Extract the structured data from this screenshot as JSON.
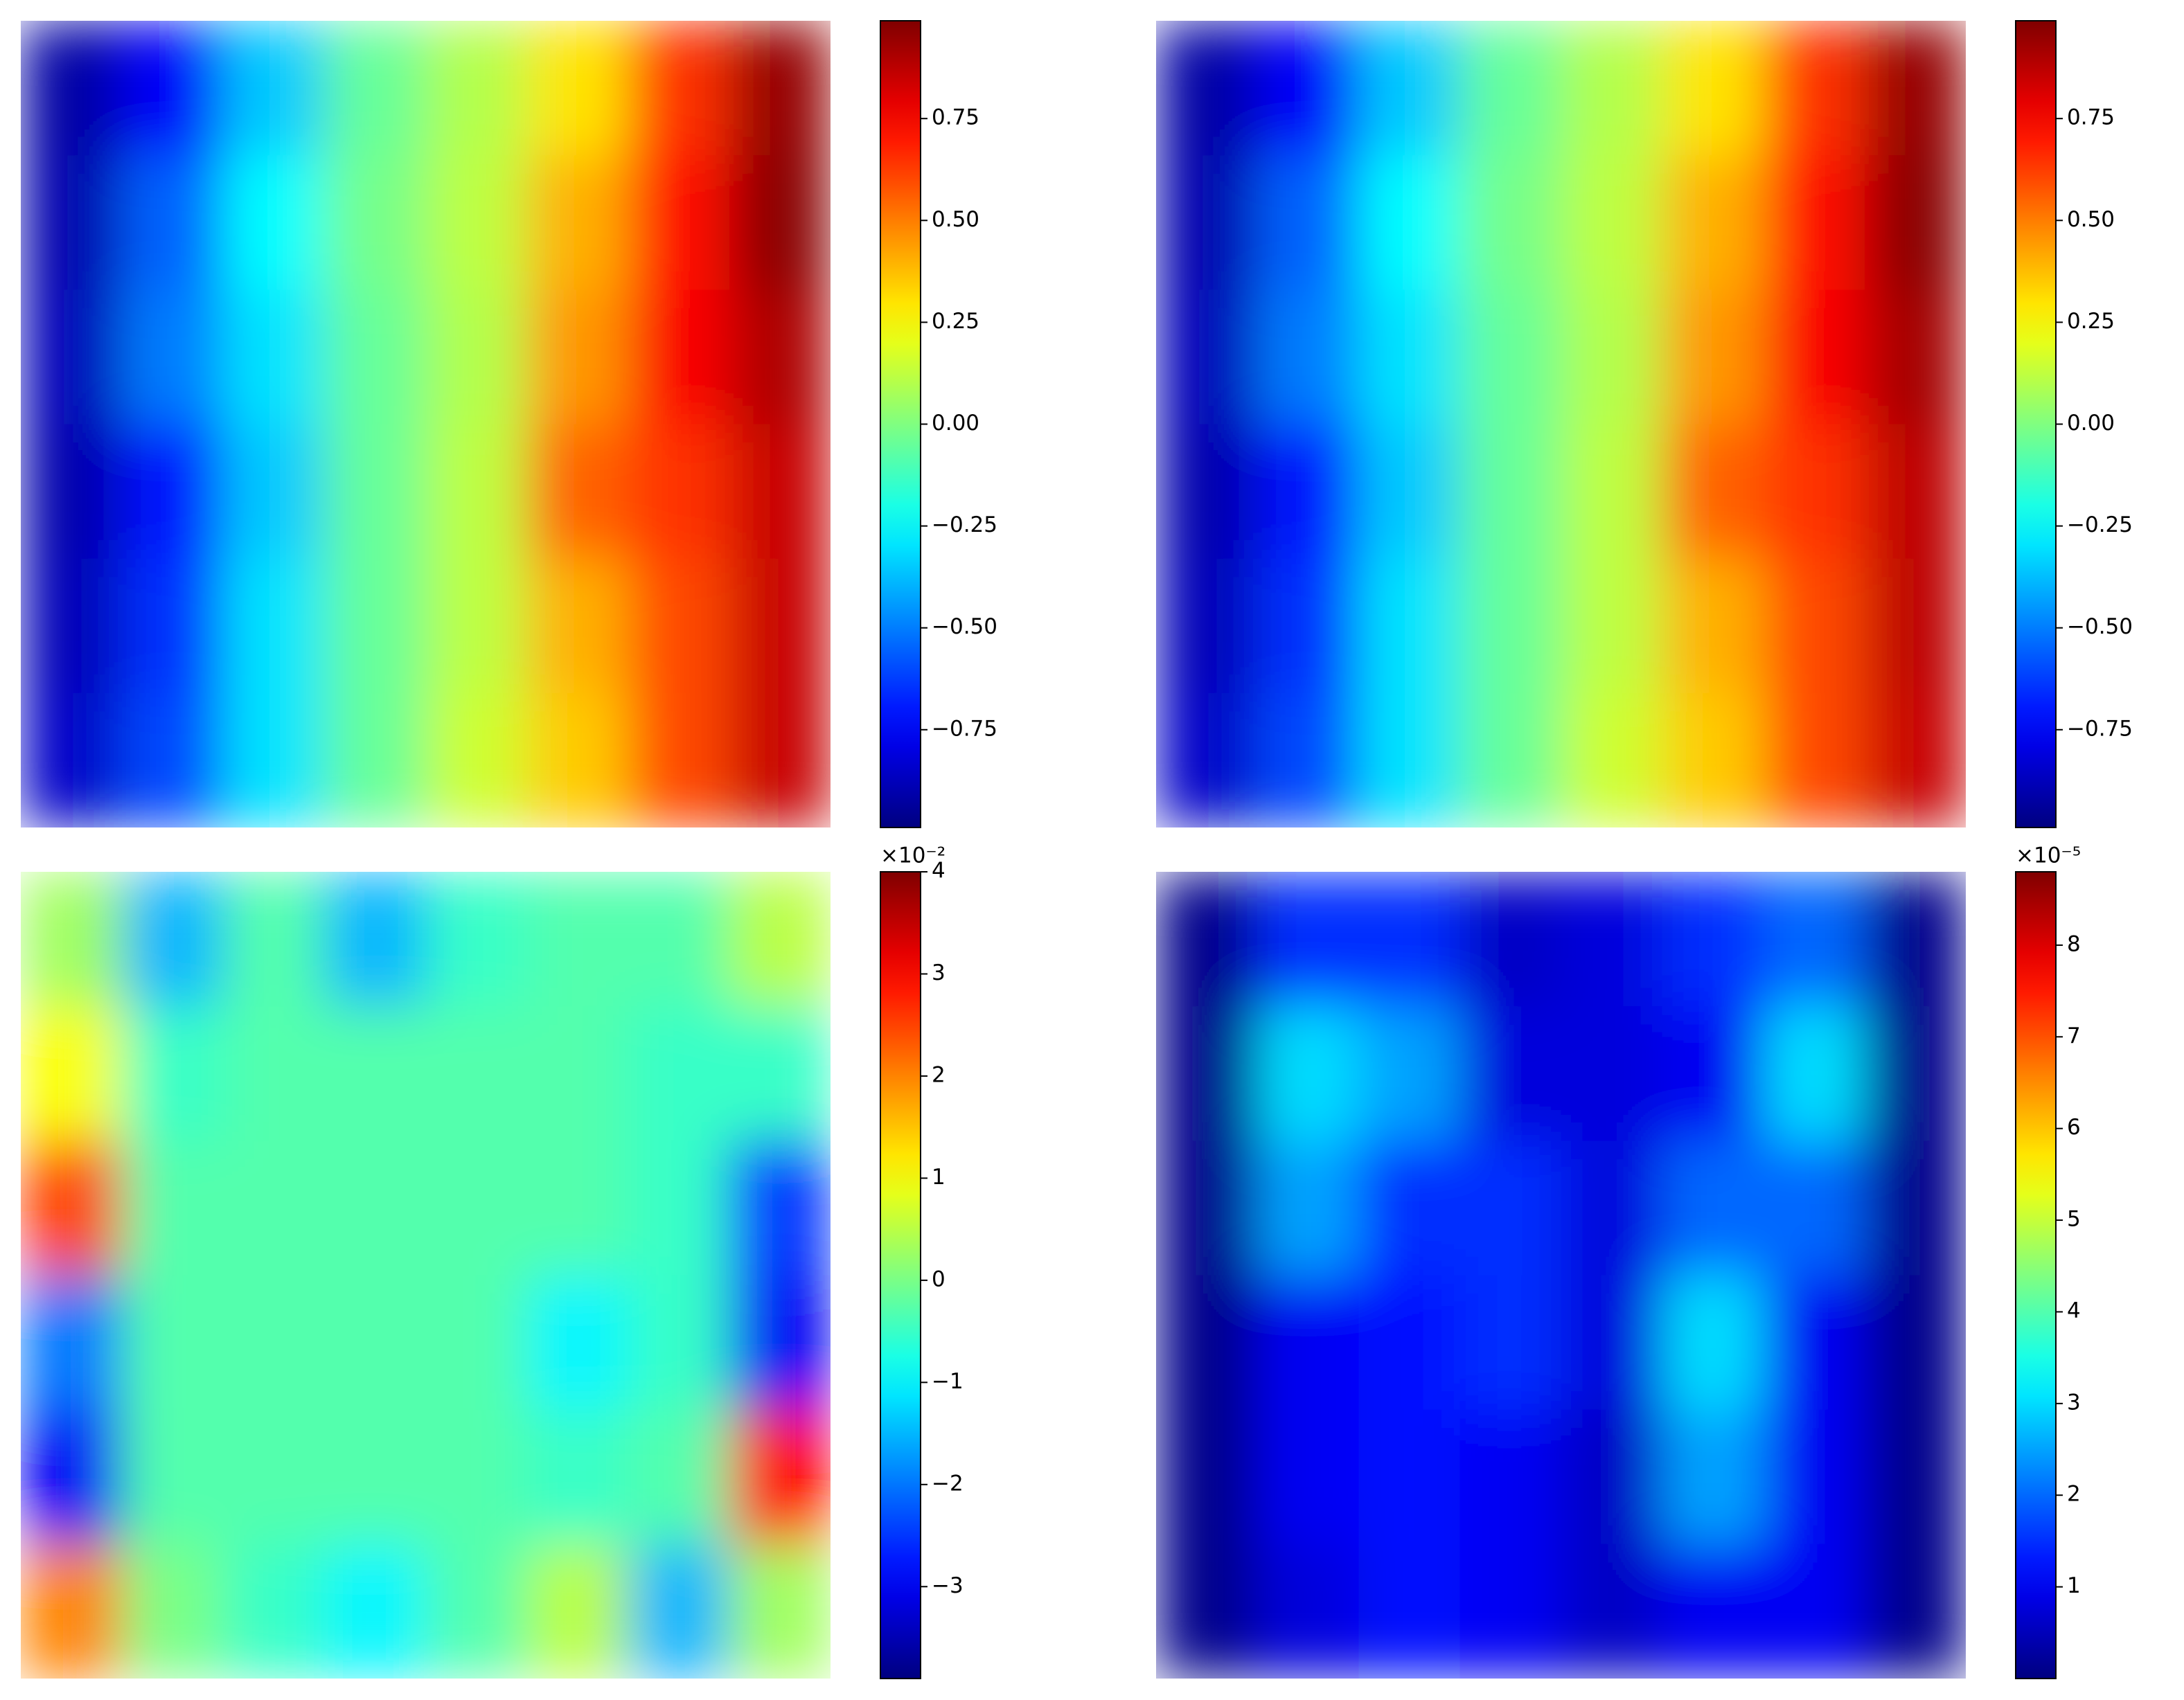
{
  "chart_data": [
    {
      "type": "heatmap",
      "z": [
        [
          -0.92,
          -0.75,
          -0.35,
          -0.05,
          0.1,
          0.3,
          0.65,
          0.95
        ],
        [
          -0.9,
          -0.55,
          -0.25,
          -0.02,
          0.12,
          0.4,
          0.72,
          0.97
        ],
        [
          -0.88,
          -0.5,
          -0.3,
          -0.05,
          0.1,
          0.45,
          0.75,
          0.9
        ],
        [
          -0.9,
          -0.7,
          -0.35,
          -0.05,
          0.12,
          0.55,
          0.65,
          0.85
        ],
        [
          -0.88,
          -0.65,
          -0.3,
          -0.05,
          0.12,
          0.4,
          0.6,
          0.85
        ],
        [
          -0.85,
          -0.6,
          -0.3,
          -0.05,
          0.15,
          0.35,
          0.6,
          0.85
        ]
      ],
      "clim": [
        -0.99,
        0.99
      ],
      "cticks": [
        {
          "value": -0.75,
          "label": "−0.75"
        },
        {
          "value": -0.5,
          "label": "−0.50"
        },
        {
          "value": -0.25,
          "label": "−0.25"
        },
        {
          "value": 0,
          "label": "0.00"
        },
        0.25,
        {
          "value": 0.5,
          "label": "0.50"
        },
        0.75
      ]
    },
    {
      "type": "heatmap",
      "z": [
        [
          -0.92,
          -0.75,
          -0.35,
          -0.05,
          0.1,
          0.3,
          0.65,
          0.95
        ],
        [
          -0.9,
          -0.55,
          -0.25,
          -0.02,
          0.12,
          0.4,
          0.72,
          0.97
        ],
        [
          -0.88,
          -0.5,
          -0.3,
          -0.05,
          0.1,
          0.45,
          0.75,
          0.92
        ],
        [
          -0.9,
          -0.7,
          -0.35,
          -0.05,
          0.12,
          0.55,
          0.65,
          0.87
        ],
        [
          -0.88,
          -0.65,
          -0.3,
          -0.05,
          0.12,
          0.4,
          0.6,
          0.87
        ],
        [
          -0.85,
          -0.6,
          -0.3,
          -0.05,
          0.15,
          0.35,
          0.6,
          0.85
        ]
      ],
      "clim": [
        -0.99,
        0.99
      ],
      "cticks": [
        {
          "value": -0.75,
          "label": "−0.75"
        },
        {
          "value": -0.5,
          "label": "−0.50"
        },
        {
          "value": -0.25,
          "label": "−0.25"
        },
        {
          "value": 0,
          "label": "0.00"
        },
        0.25,
        {
          "value": 0.5,
          "label": "0.50"
        },
        0.75
      ]
    },
    {
      "type": "heatmap",
      "z": [
        [
          0.3,
          -1.5,
          -0.3,
          -1.5,
          -0.5,
          -0.3,
          -0.3,
          0.5
        ],
        [
          1,
          -0.5,
          -0.3,
          -0.3,
          -0.3,
          -0.3,
          -0.5,
          -0.5
        ],
        [
          2.5,
          -0.3,
          -0.3,
          -0.3,
          -0.3,
          -0.3,
          -0.5,
          -2.5
        ],
        [
          -2,
          -0.3,
          -0.3,
          -0.3,
          -0.3,
          -1,
          -0.5,
          -3
        ],
        [
          -3,
          -0.3,
          -0.3,
          -0.3,
          -0.3,
          -0.5,
          -0.3,
          3
        ],
        [
          2,
          0,
          -0.5,
          -1,
          -0.3,
          0.5,
          -1.5,
          0.3
        ]
      ],
      "clim": [
        -3.9,
        4.0
      ],
      "offset_text": "×10⁻²",
      "cticks": [
        {
          "value": -3,
          "label": "−3"
        },
        {
          "value": -2,
          "label": "−2"
        },
        {
          "value": -1,
          "label": "−1"
        },
        0,
        1,
        2,
        3,
        4
      ]
    },
    {
      "type": "heatmap",
      "z": [
        [
          0.1,
          1.5,
          1.5,
          0.6,
          0.8,
          1.5,
          2,
          0.1
        ],
        [
          0.1,
          3,
          2.5,
          0.8,
          0.8,
          1,
          3,
          0.1
        ],
        [
          0.1,
          2.5,
          1.5,
          1.5,
          0.8,
          2,
          2,
          0.1
        ],
        [
          0.1,
          1,
          1.2,
          1.5,
          0.8,
          3,
          1,
          0.1
        ],
        [
          0.1,
          1,
          1.2,
          1,
          0.6,
          2.5,
          1,
          0.1
        ],
        [
          0.1,
          0.8,
          1.2,
          1,
          0.6,
          1,
          1,
          0.1
        ]
      ],
      "clim": [
        0,
        8.8
      ],
      "offset_text": "×10⁻⁵",
      "cticks": [
        1,
        2,
        3,
        4,
        5,
        6,
        7,
        8
      ]
    }
  ]
}
